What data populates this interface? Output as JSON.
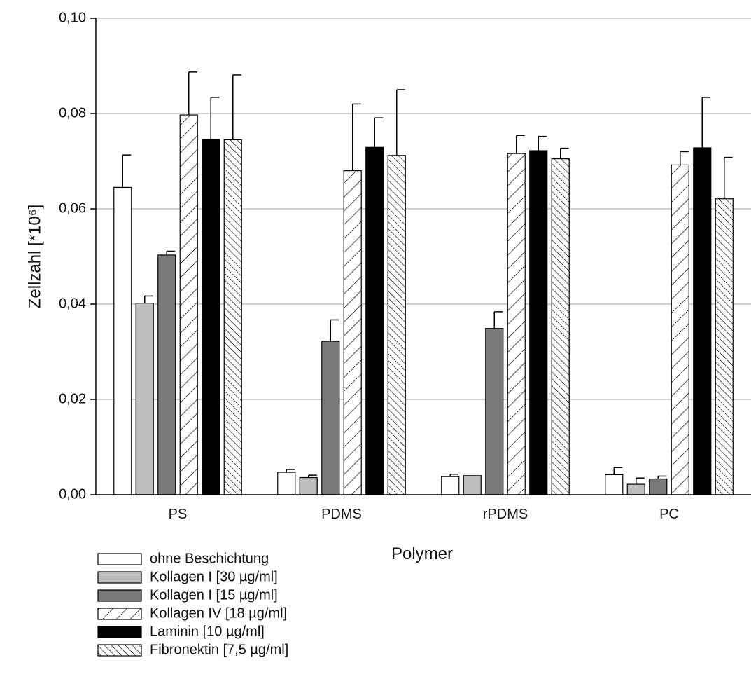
{
  "chart_data": {
    "type": "bar",
    "xlabel": "Polymer",
    "ylabel": "Zellzahl [*10⁶]",
    "ylim": [
      0,
      0.1
    ],
    "yticks": [
      {
        "value": 0.0,
        "label": "0,00"
      },
      {
        "value": 0.02,
        "label": "0,02"
      },
      {
        "value": 0.04,
        "label": "0,04"
      },
      {
        "value": 0.06,
        "label": "0,06"
      },
      {
        "value": 0.08,
        "label": "0,08"
      },
      {
        "value": 0.1,
        "label": "0,10"
      }
    ],
    "categories": [
      "PS",
      "PDMS",
      "rPDMS",
      "PC"
    ],
    "grid": "horizontal",
    "legend_position": "bottom-left",
    "series": [
      {
        "name": "ohne Beschichtung",
        "fill": "white",
        "values": [
          0.0645,
          0.0047,
          0.0038,
          0.0042
        ],
        "errors": [
          0.0068,
          0.0006,
          0.0005,
          0.0015
        ]
      },
      {
        "name": "Kollagen I [30 µg/ml]",
        "fill": "lightgray",
        "values": [
          0.0402,
          0.0036,
          0.004,
          0.0022
        ],
        "errors": [
          0.0015,
          0.0005,
          0.0,
          0.0013
        ]
      },
      {
        "name": "Kollagen I [15 µg/ml]",
        "fill": "darkgray",
        "values": [
          0.0503,
          0.0322,
          0.0349,
          0.0033
        ],
        "errors": [
          0.0008,
          0.0045,
          0.0035,
          0.0006
        ]
      },
      {
        "name": "Kollagen IV [18 µg/ml]",
        "fill": "forward-hatch",
        "values": [
          0.0797,
          0.068,
          0.0716,
          0.0692
        ],
        "errors": [
          0.009,
          0.014,
          0.0038,
          0.0028
        ]
      },
      {
        "name": "Laminin [10 µg/ml]",
        "fill": "black",
        "values": [
          0.0746,
          0.0729,
          0.0722,
          0.0728
        ],
        "errors": [
          0.0088,
          0.0062,
          0.003,
          0.0106
        ]
      },
      {
        "name": "Fibronektin [7,5 µg/ml]",
        "fill": "backward-hatch",
        "values": [
          0.0745,
          0.0712,
          0.0705,
          0.0621
        ],
        "errors": [
          0.0136,
          0.0138,
          0.0022,
          0.0087
        ]
      }
    ]
  },
  "colors": {
    "lightgray": "#bdbdbd",
    "darkgray": "#7a7a7a",
    "black": "#000000",
    "gridline": "#b3b3b3",
    "axis": "#000000"
  }
}
